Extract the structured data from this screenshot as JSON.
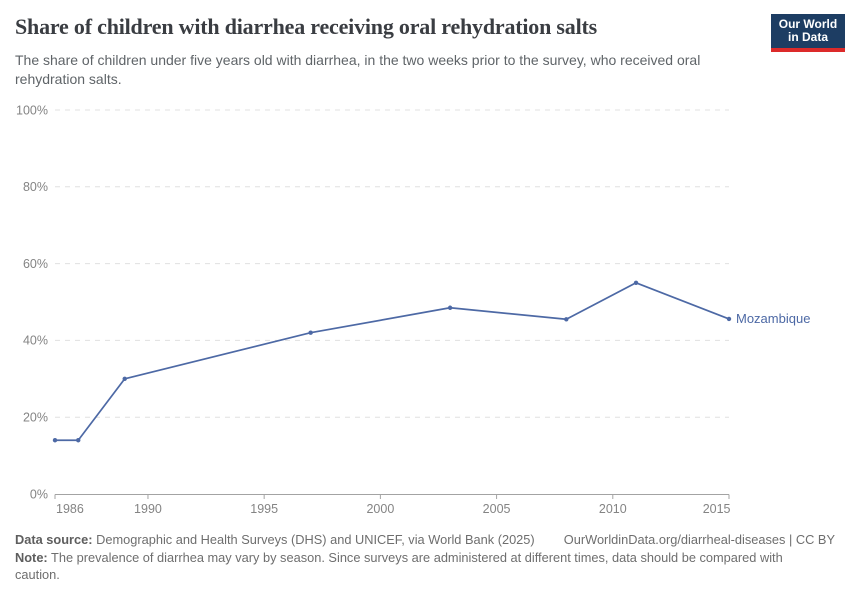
{
  "header": {
    "title": "Share of children with diarrhea receiving oral rehydration salts",
    "subtitle": "The share of children under five years old with diarrhea, in the two weeks prior to the survey, who received oral rehydration salts.",
    "logo": {
      "line1": "Our World",
      "line2": "in Data"
    }
  },
  "chart_data": {
    "type": "line",
    "title": "Share of children with diarrhea receiving oral rehydration salts",
    "series": [
      {
        "name": "Mozambique",
        "color": "#4d69a5",
        "points": [
          {
            "year": 1986,
            "value": 14
          },
          {
            "year": 1987,
            "value": 14
          },
          {
            "year": 1989,
            "value": 30
          },
          {
            "year": 1997,
            "value": 42
          },
          {
            "year": 2003,
            "value": 48.5
          },
          {
            "year": 2008,
            "value": 45.5
          },
          {
            "year": 2011,
            "value": 55
          },
          {
            "year": 2015,
            "value": 45.6
          }
        ]
      }
    ],
    "xlim": [
      1986,
      2015
    ],
    "ylim": [
      0,
      100
    ],
    "x_ticks": [
      1986,
      1990,
      1995,
      2000,
      2005,
      2010,
      2015
    ],
    "y_ticks": [
      0,
      20,
      40,
      60,
      80,
      100
    ],
    "y_tick_suffix": "%",
    "grid": "horizontal-dashed",
    "legend": "end-of-line entity label",
    "entity_label": "Mozambique"
  },
  "footer": {
    "datasource_label": "Data source:",
    "datasource_text": " Demographic and Health Surveys (DHS) and UNICEF, via World Bank (2025)",
    "license_text": "OurWorldinData.org/diarrheal-diseases | CC BY",
    "note_label": "Note:",
    "note_text": " The prevalence of diarrhea may vary by season. Since surveys are administered at different times, data should be compared with caution."
  },
  "colors": {
    "line": "#4d69a5",
    "title_text": "#3a3d42",
    "subtitle_text": "#5f6468",
    "axis_text": "#848484",
    "gridline": "#e0e0e0",
    "axis_line": "#a3a3a3",
    "footer_text": "#6e6e6e",
    "logo_bg": "#1d3d63",
    "logo_accent": "#dc2a2a"
  }
}
